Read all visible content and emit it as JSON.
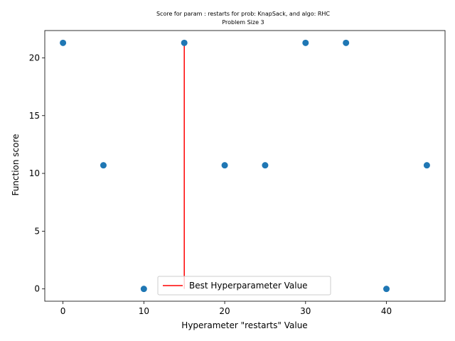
{
  "chart_data": {
    "type": "scatter",
    "title_lines": [
      "Score for param : restarts for prob: KnapSack, and algo: RHC",
      "Problem Size 3"
    ],
    "xlabel": "Hyperameter \"restarts\" Value",
    "ylabel": "Function score",
    "xlim": [
      -2.25,
      47.25
    ],
    "ylim": [
      -1.065,
      22.365
    ],
    "x_ticks": [
      0,
      10,
      20,
      30,
      40
    ],
    "y_ticks": [
      0,
      5,
      10,
      15,
      20
    ],
    "series": [
      {
        "color": "#1f77b4",
        "points": [
          {
            "x": 0,
            "y": 21.3
          },
          {
            "x": 5,
            "y": 10.7
          },
          {
            "x": 10,
            "y": 0
          },
          {
            "x": 15,
            "y": 21.3
          },
          {
            "x": 20,
            "y": 10.7
          },
          {
            "x": 25,
            "y": 10.7
          },
          {
            "x": 30,
            "y": 21.3
          },
          {
            "x": 35,
            "y": 21.3
          },
          {
            "x": 40,
            "y": 0
          },
          {
            "x": 45,
            "y": 10.7
          }
        ]
      }
    ],
    "best_line": {
      "label": "Best Hyperparameter Value",
      "x": 15,
      "y0": 0,
      "y1": 21.3,
      "color": "#ff0000"
    },
    "legend_placement": "lower-center",
    "grid": false
  }
}
